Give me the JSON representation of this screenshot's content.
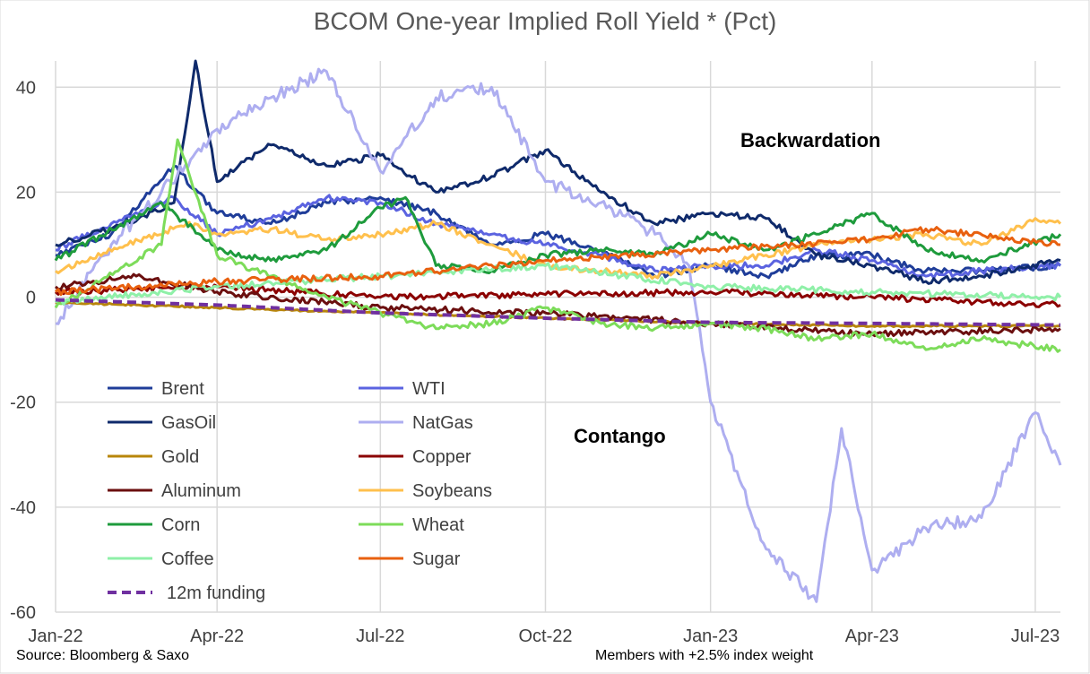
{
  "chart_data": {
    "type": "line",
    "title": "BCOM One-year Implied Roll Yield * (Pct)",
    "x_ticks": [
      "Jan-22",
      "Apr-22",
      "Jul-22",
      "Oct-22",
      "Jan-23",
      "Apr-23",
      "Jul-23"
    ],
    "x_range": [
      "2022-01-01",
      "2023-07-15"
    ],
    "ylim": [
      -60,
      45
    ],
    "y_ticks": [
      40,
      20,
      0,
      -20,
      -40,
      -60
    ],
    "grid": true,
    "legend_position": "lower-left inside",
    "annotations": [
      "Backwardation",
      "Contango"
    ],
    "source": "Source: Bloomberg & Saxo",
    "note": "Members with +2.5% index weight",
    "series": [
      {
        "name": "Brent",
        "color": "#1f3d99",
        "dash": false,
        "x": [
          "2022-01-01",
          "2022-02-01",
          "2022-03-08",
          "2022-04-01",
          "2022-05-01",
          "2022-06-01",
          "2022-07-01",
          "2022-08-01",
          "2022-09-01",
          "2022-10-01",
          "2022-11-01",
          "2022-12-01",
          "2023-01-01",
          "2023-02-01",
          "2023-03-01",
          "2023-04-01",
          "2023-05-01",
          "2023-06-01",
          "2023-07-15"
        ],
        "y": [
          8,
          12,
          25,
          16,
          14,
          18,
          19,
          16,
          10,
          12,
          9,
          4,
          6,
          4,
          8,
          8,
          5,
          5,
          6
        ]
      },
      {
        "name": "WTI",
        "color": "#5b63e0",
        "dash": false,
        "x": [
          "2022-01-01",
          "2022-02-01",
          "2022-03-08",
          "2022-04-01",
          "2022-05-01",
          "2022-06-01",
          "2022-07-01",
          "2022-08-01",
          "2022-09-01",
          "2022-10-01",
          "2022-11-01",
          "2022-12-01",
          "2023-01-01",
          "2023-02-01",
          "2023-03-01",
          "2023-04-01",
          "2023-05-01",
          "2023-06-01",
          "2023-07-15"
        ],
        "y": [
          9,
          14,
          19,
          12,
          15,
          19,
          18,
          14,
          12,
          10,
          8,
          5,
          6,
          6,
          9,
          7,
          4,
          5,
          6
        ]
      },
      {
        "name": "GasOil",
        "color": "#0f2a6b",
        "dash": false,
        "x": [
          "2022-01-01",
          "2022-02-01",
          "2022-03-08",
          "2022-03-20",
          "2022-04-01",
          "2022-05-01",
          "2022-06-01",
          "2022-07-01",
          "2022-08-01",
          "2022-09-01",
          "2022-10-01",
          "2022-11-01",
          "2022-12-01",
          "2023-01-01",
          "2023-02-01",
          "2023-03-01",
          "2023-04-01",
          "2023-05-01",
          "2023-06-01",
          "2023-07-15"
        ],
        "y": [
          10,
          13,
          18,
          45,
          22,
          29,
          25,
          27,
          20,
          23,
          28,
          20,
          14,
          16,
          15,
          8,
          6,
          3,
          4,
          7
        ]
      },
      {
        "name": "NatGas",
        "color": "#aeaef0",
        "dash": false,
        "x": [
          "2022-01-01",
          "2022-02-01",
          "2022-03-01",
          "2022-04-01",
          "2022-05-01",
          "2022-06-01",
          "2022-07-01",
          "2022-08-01",
          "2022-09-01",
          "2022-10-01",
          "2022-11-01",
          "2022-12-01",
          "2022-12-20",
          "2023-01-01",
          "2023-02-01",
          "2023-03-01",
          "2023-03-15",
          "2023-04-01",
          "2023-05-01",
          "2023-06-01",
          "2023-07-01",
          "2023-07-15"
        ],
        "y": [
          -5,
          10,
          20,
          32,
          38,
          43,
          24,
          38,
          40,
          22,
          18,
          12,
          6,
          -20,
          -48,
          -58,
          -25,
          -52,
          -44,
          -42,
          -22,
          -32
        ]
      },
      {
        "name": "Gold",
        "color": "#b8860b",
        "dash": false,
        "x": [
          "2022-01-01",
          "2022-04-01",
          "2022-07-01",
          "2022-10-01",
          "2023-01-01",
          "2023-04-01",
          "2023-07-15"
        ],
        "y": [
          -1,
          -2,
          -3,
          -4,
          -5,
          -5.5,
          -5.5
        ]
      },
      {
        "name": "Copper",
        "color": "#8b0000",
        "dash": false,
        "x": [
          "2022-01-01",
          "2022-04-01",
          "2022-07-01",
          "2022-10-01",
          "2023-01-01",
          "2023-04-01",
          "2023-07-15"
        ],
        "y": [
          1,
          2,
          0,
          0.5,
          1,
          0,
          -1.5
        ]
      },
      {
        "name": "Aluminum",
        "color": "#6b0f0f",
        "dash": false,
        "x": [
          "2022-01-01",
          "2022-02-15",
          "2022-04-01",
          "2022-07-01",
          "2022-10-01",
          "2023-01-01",
          "2023-04-01",
          "2023-07-15"
        ],
        "y": [
          2,
          4,
          1,
          -2,
          -3,
          -5,
          -7,
          -6
        ]
      },
      {
        "name": "Soybeans",
        "color": "#ffc04d",
        "dash": false,
        "x": [
          "2022-01-01",
          "2022-03-15",
          "2022-04-01",
          "2022-05-01",
          "2022-06-01",
          "2022-07-01",
          "2022-08-01",
          "2022-09-01",
          "2022-10-01",
          "2022-11-01",
          "2022-12-01",
          "2023-01-01",
          "2023-02-01",
          "2023-03-01",
          "2023-04-01",
          "2023-05-01",
          "2023-06-01",
          "2023-07-01",
          "2023-07-15"
        ],
        "y": [
          5,
          14,
          12,
          13,
          11,
          12,
          14,
          10,
          6,
          5,
          4,
          6,
          8,
          10,
          11,
          12,
          10,
          15,
          14
        ]
      },
      {
        "name": "Corn",
        "color": "#1e9b3c",
        "dash": false,
        "x": [
          "2022-01-01",
          "2022-03-01",
          "2022-04-01",
          "2022-05-01",
          "2022-06-01",
          "2022-07-01",
          "2022-07-15",
          "2022-08-01",
          "2022-09-01",
          "2022-10-01",
          "2022-11-01",
          "2022-12-01",
          "2023-01-01",
          "2023-02-01",
          "2023-03-01",
          "2023-04-01",
          "2023-05-01",
          "2023-06-01",
          "2023-07-15"
        ],
        "y": [
          7,
          18,
          9,
          7,
          9,
          17,
          19,
          6,
          5,
          8,
          9,
          8,
          12,
          9,
          12,
          16,
          9,
          7,
          12
        ]
      },
      {
        "name": "Wheat",
        "color": "#7ddc5a",
        "dash": false,
        "x": [
          "2022-01-01",
          "2022-03-01",
          "2022-03-10",
          "2022-04-01",
          "2022-05-01",
          "2022-06-01",
          "2022-07-01",
          "2022-08-01",
          "2022-09-01",
          "2022-10-01",
          "2022-11-01",
          "2022-12-01",
          "2023-01-01",
          "2023-02-01",
          "2023-03-01",
          "2023-04-01",
          "2023-05-01",
          "2023-06-01",
          "2023-07-15"
        ],
        "y": [
          -2,
          10,
          30,
          8,
          4,
          0,
          -3,
          -6,
          -5,
          -2,
          -5,
          -6,
          -5,
          -6,
          -8,
          -7,
          -10,
          -8,
          -10
        ]
      },
      {
        "name": "Coffee",
        "color": "#8ff0a8",
        "dash": false,
        "x": [
          "2022-01-01",
          "2022-04-01",
          "2022-07-01",
          "2022-10-01",
          "2023-01-01",
          "2023-04-01",
          "2023-07-15"
        ],
        "y": [
          -1,
          2,
          4,
          6,
          2,
          1,
          0
        ]
      },
      {
        "name": "Sugar",
        "color": "#e8600f",
        "dash": false,
        "x": [
          "2022-01-01",
          "2022-04-01",
          "2022-07-01",
          "2022-10-01",
          "2023-01-01",
          "2023-04-01",
          "2023-05-01",
          "2023-07-15"
        ],
        "y": [
          1,
          3,
          4,
          7,
          9,
          11,
          13,
          10
        ]
      },
      {
        "name": "12m funding",
        "color": "#7030a0",
        "dash": true,
        "x": [
          "2022-01-01",
          "2022-04-01",
          "2022-07-01",
          "2022-10-01",
          "2023-01-01",
          "2023-04-01",
          "2023-07-15"
        ],
        "y": [
          -0.5,
          -1.5,
          -3,
          -4,
          -4.8,
          -5,
          -5.3
        ]
      }
    ]
  }
}
